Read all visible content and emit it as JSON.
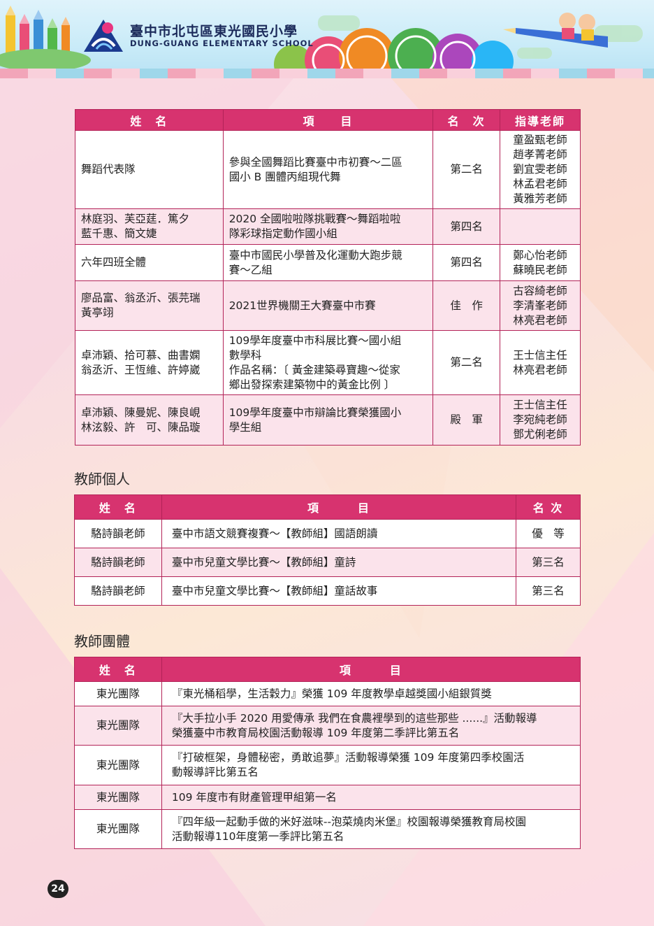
{
  "header": {
    "school_name_zh": "臺中市北屯區東光國民小學",
    "school_name_en": "DUNG-GUANG ELEMENTARY SCHOOL"
  },
  "student_table": {
    "headers": [
      "姓　名",
      "項　　目",
      "名　次",
      "指導老師"
    ],
    "rows": [
      {
        "name": [
          "舞蹈代表隊"
        ],
        "item": [
          "參與全國舞蹈比賽臺中市初賽～二區",
          "國小 B 團體丙組現代舞"
        ],
        "rank": "第二名",
        "teachers": [
          "童盈甄老師",
          "趙孝菁老師",
          "劉宜雯老師",
          "林孟君老師",
          "黃雅芳老師"
        ]
      },
      {
        "name": [
          "林庭羽、芙亞莛．篤夕",
          "藍千惠、簡文婕"
        ],
        "item": [
          "2020 全國啦啦隊挑戰賽～舞蹈啦啦",
          "隊彩球指定動作國小組"
        ],
        "rank": "第四名",
        "teachers": []
      },
      {
        "name": [
          "六年四班全體"
        ],
        "item": [
          "臺中市國民小學普及化運動大跑步競",
          "賽～乙組"
        ],
        "rank": "第四名",
        "teachers": [
          "鄭心怡老師",
          "蘇曉民老師"
        ]
      },
      {
        "name": [
          "廖品富、翁丞沂、張芫瑞",
          "黃亭翊"
        ],
        "item": [
          "2021世界機關王大賽臺中市賽"
        ],
        "rank": "佳　作",
        "teachers": [
          "古容綺老師",
          "李清峯老師",
          "林亮君老師"
        ]
      },
      {
        "name": [
          "卓沛穎、拾可慕、曲書嫻",
          "翁丞沂、王恆維、許婷崴"
        ],
        "item": [
          "109學年度臺中市科展比賽～國小組",
          "數學科",
          "作品名稱：〔 黃金建築尋寶趣～從家",
          "鄉出發探索建築物中的黃金比例 〕"
        ],
        "rank": "第二名",
        "teachers": [
          "王士信主任",
          "林亮君老師"
        ]
      },
      {
        "name": [
          "卓沛穎、陳曼妮、陳良峴",
          "林泫毅、許　可、陳品璇"
        ],
        "item": [
          "109學年度臺中市辯論比賽榮獲國小",
          "學生組"
        ],
        "rank": "殿　軍",
        "teachers": [
          "王士信主任",
          "李宛純老師",
          "鄧尤俐老師"
        ]
      }
    ]
  },
  "teacher_individual": {
    "title": "教師個人",
    "headers": [
      "姓　名",
      "項　　　目",
      "名 次"
    ],
    "rows": [
      {
        "name": "駱詩韻老師",
        "item": "臺中市語文競賽複賽～【教師組】國語朗讀",
        "rank": "優　等"
      },
      {
        "name": "駱詩韻老師",
        "item": "臺中市兒童文學比賽～【教師組】童詩",
        "rank": "第三名"
      },
      {
        "name": "駱詩韻老師",
        "item": "臺中市兒童文學比賽～【教師組】童話故事",
        "rank": "第三名"
      }
    ]
  },
  "teacher_group": {
    "title": "教師團體",
    "headers": [
      "姓　名",
      "項　　　目"
    ],
    "rows": [
      {
        "name": "東光團隊",
        "item": [
          "『東光桶稻學，生活穀力』榮獲 109 年度教學卓越獎國小組銀質獎"
        ]
      },
      {
        "name": "東光團隊",
        "item": [
          "『大手拉小手 2020 用愛傳承 我們在食農裡學到的這些那些 ......』活動報導",
          "榮獲臺中市教育局校園活動報導 109 年度第二季評比第五名"
        ]
      },
      {
        "name": "東光團隊",
        "item": [
          "『打破框架，身體秘密，勇敢追夢』活動報導榮獲 109 年度第四季校園活",
          "動報導評比第五名"
        ]
      },
      {
        "name": "東光團隊",
        "item": [
          "109 年度市有財產管理甲組第一名"
        ]
      },
      {
        "name": "東光團隊",
        "item": [
          "『四年級一起動手做的米好滋味--泡菜燒肉米堡』校園報導榮獲教育局校園",
          "活動報導110年度第一季評比第五名"
        ]
      }
    ]
  },
  "page_number": "24",
  "colors": {
    "header_row": "#d7336f",
    "border": "#b32358",
    "alt_row": "#fbe3eb"
  }
}
